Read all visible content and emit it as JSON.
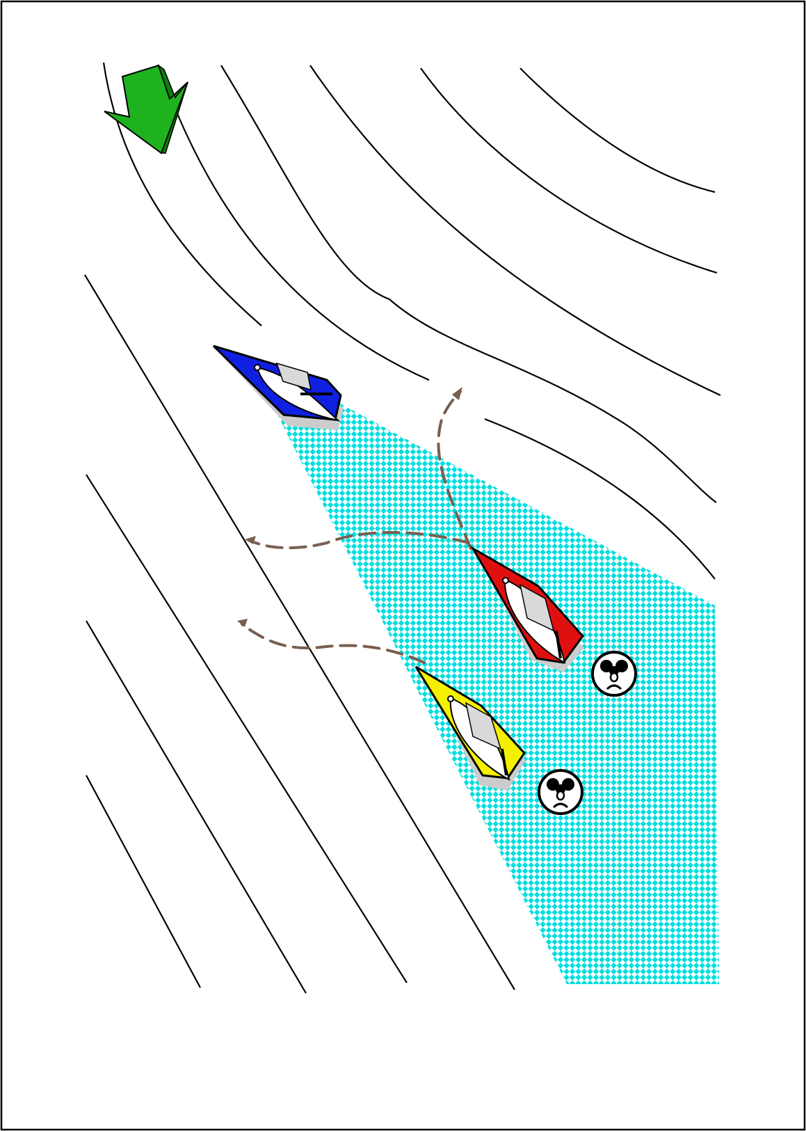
{
  "diagram": {
    "wind_arrow": {
      "icon": "wind-arrow-icon",
      "color": "#1fb21f"
    },
    "water_zone": {
      "color": "#00dede",
      "pattern": "checkered"
    },
    "course_arrow_color": "#7a5e4e",
    "boats": [
      {
        "id": "blue",
        "hull_color": "#1020e0"
      },
      {
        "id": "red",
        "hull_color": "#e01010"
      },
      {
        "id": "yellow",
        "hull_color": "#f5f000"
      }
    ],
    "faces": [
      {
        "icon": "sad-face-icon"
      },
      {
        "icon": "sad-face-icon"
      }
    ]
  }
}
